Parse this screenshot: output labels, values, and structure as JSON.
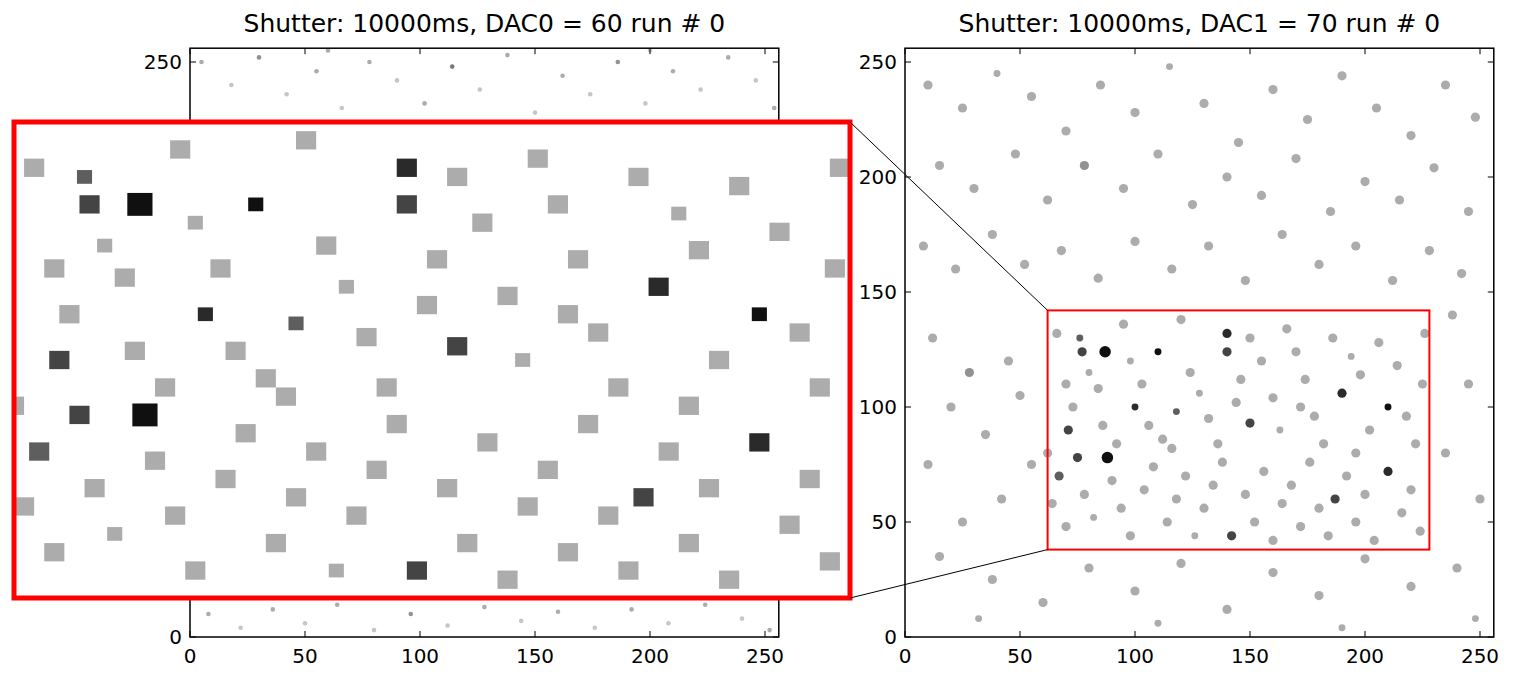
{
  "chart_data": [
    {
      "type": "heatmap",
      "title": "Shutter: 10000ms, DAC0 = 60 run # 0",
      "xlim": [
        0,
        256
      ],
      "ylim": [
        0,
        256
      ],
      "xticks": [
        0,
        50,
        100,
        150,
        200,
        250
      ],
      "yticks": [
        0,
        250
      ],
      "hits": [
        [
          5,
          250,
          1,
          3
        ],
        [
          18,
          240,
          1,
          2
        ],
        [
          30,
          252,
          1,
          4
        ],
        [
          42,
          236,
          1,
          2
        ],
        [
          55,
          246,
          1,
          3
        ],
        [
          66,
          230,
          1,
          2
        ],
        [
          78,
          250,
          1,
          3
        ],
        [
          90,
          242,
          1,
          2
        ],
        [
          102,
          232,
          1,
          3
        ],
        [
          114,
          248,
          1,
          5
        ],
        [
          126,
          238,
          1,
          2
        ],
        [
          138,
          253,
          1,
          3
        ],
        [
          150,
          228,
          1,
          2
        ],
        [
          162,
          244,
          1,
          3
        ],
        [
          174,
          236,
          1,
          2
        ],
        [
          186,
          250,
          1,
          4
        ],
        [
          198,
          232,
          1,
          2
        ],
        [
          210,
          246,
          1,
          3
        ],
        [
          222,
          238,
          1,
          2
        ],
        [
          234,
          252,
          1,
          3
        ],
        [
          246,
          242,
          1,
          2
        ],
        [
          254,
          230,
          1,
          3
        ],
        [
          60,
          255,
          1,
          3
        ],
        [
          200,
          255,
          1,
          2
        ],
        [
          8,
          10,
          1,
          3
        ],
        [
          22,
          4,
          1,
          2
        ],
        [
          36,
          12,
          1,
          3
        ],
        [
          50,
          6,
          1,
          2
        ],
        [
          64,
          14,
          1,
          3
        ],
        [
          80,
          3,
          1,
          2
        ],
        [
          96,
          10,
          1,
          4
        ],
        [
          112,
          5,
          1,
          2
        ],
        [
          128,
          13,
          1,
          3
        ],
        [
          144,
          7,
          1,
          2
        ],
        [
          160,
          11,
          1,
          3
        ],
        [
          176,
          4,
          1,
          2
        ],
        [
          192,
          12,
          1,
          3
        ],
        [
          208,
          6,
          1,
          2
        ],
        [
          224,
          14,
          1,
          3
        ],
        [
          240,
          8,
          1,
          2
        ],
        [
          252,
          3,
          1,
          3
        ]
      ]
    },
    {
      "type": "heatmap",
      "title": "Shutter: 10000ms, DAC1 = 70 run # 0",
      "xlim": [
        0,
        256
      ],
      "ylim": [
        0,
        256
      ],
      "xticks": [
        0,
        50,
        100,
        150,
        200,
        250
      ],
      "yticks": [
        0,
        50,
        100,
        150,
        200,
        250
      ],
      "zoom": {
        "xlim": [
          62,
          228
        ],
        "ylim": [
          38,
          142
        ]
      },
      "hits": [
        [
          87,
          124,
          2.5,
          9
        ],
        [
          88,
          78,
          2.5,
          9
        ],
        [
          140,
          132,
          2,
          8
        ],
        [
          110,
          124,
          1.5,
          9
        ],
        [
          210,
          100,
          1.5,
          9
        ],
        [
          210,
          72,
          2,
          8
        ],
        [
          142,
          44,
          2,
          7
        ],
        [
          190,
          106,
          2,
          8
        ],
        [
          75,
          78,
          2,
          7
        ],
        [
          71,
          90,
          2,
          7
        ],
        [
          150,
          93,
          2,
          7
        ],
        [
          187,
          60,
          2,
          7
        ],
        [
          100,
          100,
          1.5,
          8
        ],
        [
          140,
          124,
          2,
          7
        ],
        [
          118,
          98,
          1.5,
          6
        ],
        [
          67,
          70,
          2,
          6
        ],
        [
          77,
          124,
          2,
          7
        ],
        [
          76,
          130,
          1.5,
          6
        ],
        [
          66,
          132,
          2,
          3
        ],
        [
          70,
          110,
          2,
          3
        ],
        [
          73,
          100,
          2,
          3
        ],
        [
          80,
          115,
          1.5,
          3
        ],
        [
          84,
          108,
          2,
          3
        ],
        [
          95,
          136,
          2,
          3
        ],
        [
          98,
          120,
          1.5,
          3
        ],
        [
          103,
          110,
          2,
          3
        ],
        [
          106,
          92,
          2,
          3
        ],
        [
          112,
          86,
          2,
          3
        ],
        [
          120,
          138,
          2,
          3
        ],
        [
          124,
          115,
          2,
          3
        ],
        [
          128,
          106,
          1.5,
          3
        ],
        [
          132,
          95,
          2,
          3
        ],
        [
          136,
          84,
          2,
          3
        ],
        [
          146,
          112,
          2,
          3
        ],
        [
          150,
          130,
          2,
          3
        ],
        [
          155,
          120,
          2,
          3
        ],
        [
          160,
          104,
          2,
          3
        ],
        [
          163,
          90,
          1.5,
          3
        ],
        [
          166,
          134,
          2,
          3
        ],
        [
          170,
          124,
          2,
          3
        ],
        [
          174,
          112,
          2,
          3
        ],
        [
          178,
          96,
          2,
          3
        ],
        [
          182,
          84,
          2,
          3
        ],
        [
          186,
          130,
          2,
          3
        ],
        [
          194,
          122,
          1.5,
          3
        ],
        [
          198,
          114,
          2,
          3
        ],
        [
          202,
          90,
          2,
          3
        ],
        [
          206,
          128,
          2,
          3
        ],
        [
          214,
          118,
          2,
          3
        ],
        [
          218,
          96,
          2,
          3
        ],
        [
          222,
          84,
          2,
          3
        ],
        [
          225,
          110,
          2,
          3
        ],
        [
          64,
          58,
          2,
          3
        ],
        [
          70,
          48,
          2,
          3
        ],
        [
          78,
          62,
          2,
          3
        ],
        [
          82,
          52,
          1.5,
          3
        ],
        [
          90,
          68,
          2,
          3
        ],
        [
          94,
          56,
          2,
          3
        ],
        [
          98,
          44,
          2,
          3
        ],
        [
          104,
          64,
          2,
          3
        ],
        [
          108,
          74,
          2,
          3
        ],
        [
          114,
          50,
          2,
          3
        ],
        [
          118,
          60,
          2,
          3
        ],
        [
          122,
          70,
          2,
          3
        ],
        [
          126,
          44,
          1.5,
          3
        ],
        [
          130,
          56,
          2,
          3
        ],
        [
          134,
          66,
          2,
          3
        ],
        [
          138,
          76,
          2,
          3
        ],
        [
          148,
          62,
          2,
          3
        ],
        [
          152,
          50,
          2,
          3
        ],
        [
          156,
          72,
          2,
          3
        ],
        [
          160,
          42,
          2,
          3
        ],
        [
          164,
          58,
          2,
          3
        ],
        [
          168,
          66,
          2,
          3
        ],
        [
          172,
          48,
          2,
          3
        ],
        [
          176,
          76,
          2,
          3
        ],
        [
          180,
          56,
          2,
          3
        ],
        [
          184,
          44,
          2,
          3
        ],
        [
          192,
          70,
          2,
          3
        ],
        [
          196,
          50,
          2,
          3
        ],
        [
          200,
          62,
          2,
          3
        ],
        [
          204,
          42,
          2,
          3
        ],
        [
          216,
          54,
          2,
          3
        ],
        [
          220,
          64,
          2,
          3
        ],
        [
          224,
          46,
          2,
          3
        ],
        [
          86,
          92,
          2,
          3
        ],
        [
          92,
          84,
          2,
          3
        ],
        [
          116,
          82,
          2,
          3
        ],
        [
          144,
          102,
          2,
          3
        ],
        [
          172,
          100,
          2,
          3
        ],
        [
          196,
          80,
          2,
          3
        ],
        [
          62,
          80,
          2,
          3
        ],
        [
          226,
          132,
          2,
          3
        ],
        [
          10,
          240,
          2,
          3
        ],
        [
          25,
          230,
          2,
          3
        ],
        [
          40,
          245,
          1.5,
          3
        ],
        [
          55,
          235,
          2,
          3
        ],
        [
          70,
          220,
          2,
          3
        ],
        [
          85,
          240,
          2,
          3
        ],
        [
          100,
          228,
          2,
          3
        ],
        [
          115,
          248,
          1.5,
          3
        ],
        [
          130,
          232,
          2,
          3
        ],
        [
          145,
          215,
          2,
          3
        ],
        [
          160,
          238,
          2,
          3
        ],
        [
          175,
          225,
          2,
          3
        ],
        [
          190,
          244,
          2,
          3
        ],
        [
          205,
          230,
          2,
          3
        ],
        [
          220,
          218,
          2,
          3
        ],
        [
          235,
          240,
          2,
          3
        ],
        [
          248,
          226,
          2,
          3
        ],
        [
          15,
          205,
          2,
          3
        ],
        [
          30,
          195,
          2,
          3
        ],
        [
          48,
          210,
          2,
          3
        ],
        [
          62,
          190,
          2,
          3
        ],
        [
          78,
          205,
          2,
          4
        ],
        [
          95,
          195,
          2,
          3
        ],
        [
          110,
          210,
          2,
          3
        ],
        [
          125,
          188,
          2,
          3
        ],
        [
          140,
          200,
          2,
          3
        ],
        [
          155,
          192,
          2,
          3
        ],
        [
          170,
          208,
          2,
          3
        ],
        [
          185,
          185,
          2,
          3
        ],
        [
          200,
          198,
          2,
          3
        ],
        [
          215,
          190,
          2,
          3
        ],
        [
          230,
          204,
          2,
          3
        ],
        [
          245,
          185,
          2,
          3
        ],
        [
          8,
          170,
          2,
          3
        ],
        [
          22,
          160,
          2,
          3
        ],
        [
          38,
          175,
          2,
          3
        ],
        [
          52,
          162,
          2,
          3
        ],
        [
          68,
          168,
          2,
          3
        ],
        [
          84,
          156,
          2,
          3
        ],
        [
          100,
          172,
          2,
          3
        ],
        [
          116,
          160,
          2,
          3
        ],
        [
          132,
          170,
          2,
          3
        ],
        [
          148,
          155,
          2,
          3
        ],
        [
          164,
          175,
          2,
          3
        ],
        [
          180,
          162,
          2,
          3
        ],
        [
          196,
          170,
          2,
          3
        ],
        [
          212,
          155,
          2,
          3
        ],
        [
          228,
          168,
          2,
          3
        ],
        [
          242,
          158,
          2,
          3
        ],
        [
          12,
          130,
          2,
          3
        ],
        [
          28,
          115,
          2,
          4
        ],
        [
          20,
          100,
          2,
          3
        ],
        [
          45,
          120,
          2,
          3
        ],
        [
          35,
          88,
          2,
          3
        ],
        [
          50,
          105,
          2,
          3
        ],
        [
          10,
          75,
          2,
          3
        ],
        [
          42,
          60,
          2,
          3
        ],
        [
          25,
          50,
          2,
          3
        ],
        [
          55,
          75,
          2,
          3
        ],
        [
          15,
          35,
          2,
          3
        ],
        [
          38,
          25,
          2,
          3
        ],
        [
          60,
          15,
          2,
          3
        ],
        [
          80,
          30,
          2,
          3
        ],
        [
          100,
          20,
          2,
          3
        ],
        [
          120,
          32,
          2,
          3
        ],
        [
          140,
          12,
          2,
          3
        ],
        [
          160,
          28,
          2,
          3
        ],
        [
          180,
          18,
          2,
          3
        ],
        [
          200,
          34,
          2,
          3
        ],
        [
          220,
          22,
          2,
          3
        ],
        [
          240,
          30,
          2,
          3
        ],
        [
          235,
          80,
          2,
          3
        ],
        [
          245,
          110,
          2,
          3
        ],
        [
          238,
          140,
          2,
          3
        ],
        [
          250,
          60,
          2,
          3
        ],
        [
          32,
          8,
          1.5,
          3
        ],
        [
          110,
          6,
          1.5,
          3
        ],
        [
          190,
          4,
          1.5,
          3
        ],
        [
          248,
          8,
          1.5,
          3
        ]
      ]
    }
  ]
}
